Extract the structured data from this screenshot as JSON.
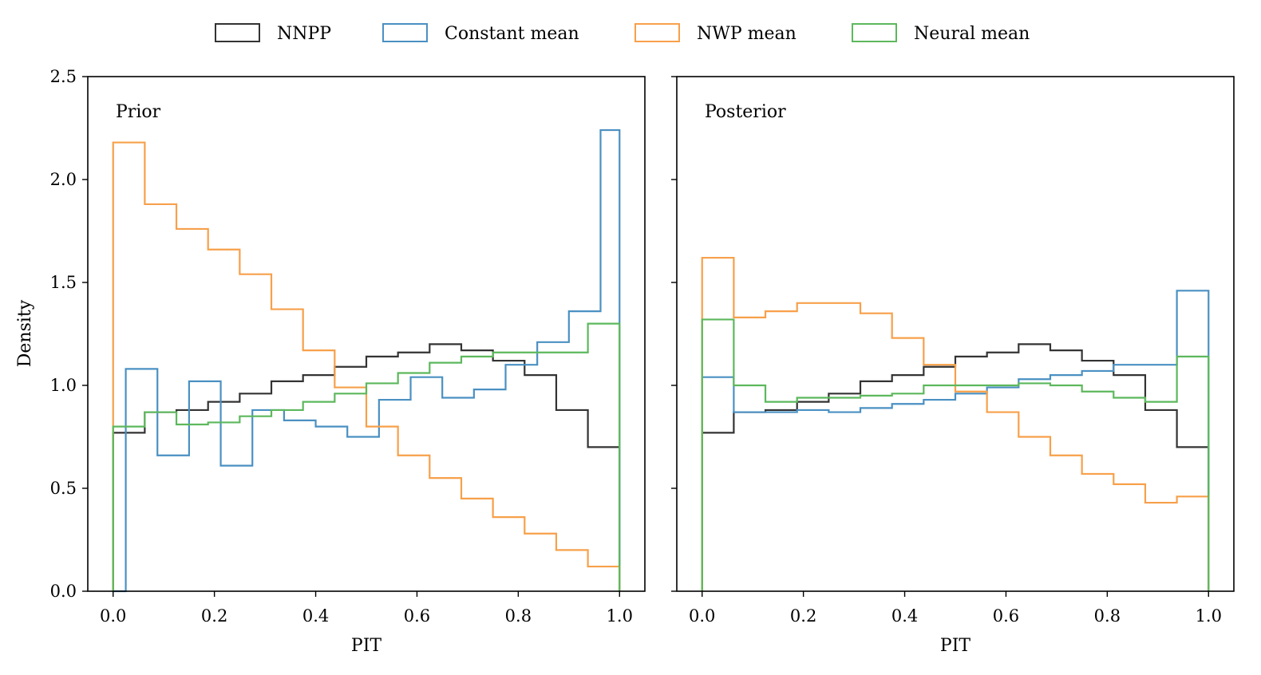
{
  "chart_data": [
    {
      "type": "histogram-step",
      "title": "Prior",
      "xlabel": "PIT",
      "ylabel": "Density",
      "xlim": [
        -0.05,
        1.05
      ],
      "ylim": [
        0,
        2.5
      ],
      "xticks": [
        "0.0",
        "0.2",
        "0.4",
        "0.6",
        "0.8",
        "1.0"
      ],
      "yticks": [
        "0.0",
        "0.5",
        "1.0",
        "1.5",
        "2.0",
        "2.5"
      ],
      "series": [
        {
          "name": "NNPP",
          "color": "#333333",
          "bin_edges": [
            0,
            0.0625,
            0.125,
            0.1875,
            0.25,
            0.3125,
            0.375,
            0.4375,
            0.5,
            0.5625,
            0.625,
            0.6875,
            0.75,
            0.8125,
            0.875,
            0.9375,
            1.0
          ],
          "values": [
            0.77,
            0.87,
            0.88,
            0.92,
            0.96,
            1.02,
            1.05,
            1.09,
            1.14,
            1.16,
            1.2,
            1.17,
            1.12,
            1.05,
            0.88,
            0.7
          ]
        },
        {
          "name": "Constant mean",
          "color": "#4a90c2",
          "bin_edges": [
            0,
            0.025,
            0.0875,
            0.15,
            0.2125,
            0.275,
            0.3375,
            0.4,
            0.4625,
            0.525,
            0.5875,
            0.65,
            0.7125,
            0.775,
            0.8375,
            0.9,
            0.9625,
            1.0
          ],
          "values": [
            0.0,
            1.08,
            0.66,
            1.02,
            0.61,
            0.88,
            0.83,
            0.8,
            0.75,
            0.93,
            1.04,
            0.94,
            0.98,
            1.1,
            1.21,
            1.36,
            2.24
          ]
        },
        {
          "name": "NWP mean",
          "color": "#f7a04a",
          "bin_edges": [
            0,
            0.0625,
            0.125,
            0.1875,
            0.25,
            0.3125,
            0.375,
            0.4375,
            0.5,
            0.5625,
            0.625,
            0.6875,
            0.75,
            0.8125,
            0.875,
            0.9375,
            1.0
          ],
          "values": [
            2.18,
            1.88,
            1.76,
            1.66,
            1.54,
            1.37,
            1.17,
            0.99,
            0.8,
            0.66,
            0.55,
            0.45,
            0.36,
            0.28,
            0.2,
            0.12
          ]
        },
        {
          "name": "Neural mean",
          "color": "#5cb85c",
          "bin_edges": [
            0,
            0.0625,
            0.125,
            0.1875,
            0.25,
            0.3125,
            0.375,
            0.4375,
            0.5,
            0.5625,
            0.625,
            0.6875,
            0.75,
            0.8125,
            0.875,
            0.9375,
            1.0
          ],
          "values": [
            0.8,
            0.87,
            0.81,
            0.82,
            0.85,
            0.88,
            0.92,
            0.96,
            1.01,
            1.06,
            1.11,
            1.14,
            1.16,
            1.16,
            1.16,
            1.3
          ]
        }
      ]
    },
    {
      "type": "histogram-step",
      "title": "Posterior",
      "xlabel": "PIT",
      "ylabel": "",
      "xlim": [
        -0.05,
        1.05
      ],
      "ylim": [
        0,
        2.5
      ],
      "xticks": [
        "0.0",
        "0.2",
        "0.4",
        "0.6",
        "0.8",
        "1.0"
      ],
      "yticks": [
        "",
        "",
        "",
        "",
        "",
        ""
      ],
      "series": [
        {
          "name": "NNPP",
          "color": "#333333",
          "bin_edges": [
            0,
            0.0625,
            0.125,
            0.1875,
            0.25,
            0.3125,
            0.375,
            0.4375,
            0.5,
            0.5625,
            0.625,
            0.6875,
            0.75,
            0.8125,
            0.875,
            0.9375,
            1.0
          ],
          "values": [
            0.77,
            0.87,
            0.88,
            0.92,
            0.96,
            1.02,
            1.05,
            1.09,
            1.14,
            1.16,
            1.2,
            1.17,
            1.12,
            1.05,
            0.88,
            0.7
          ]
        },
        {
          "name": "Constant mean",
          "color": "#4a90c2",
          "bin_edges": [
            0,
            0.0625,
            0.125,
            0.1875,
            0.25,
            0.3125,
            0.375,
            0.4375,
            0.5,
            0.5625,
            0.625,
            0.6875,
            0.75,
            0.8125,
            0.875,
            0.9375,
            1.0
          ],
          "values": [
            1.04,
            0.87,
            0.87,
            0.88,
            0.87,
            0.89,
            0.91,
            0.93,
            0.96,
            0.99,
            1.03,
            1.05,
            1.07,
            1.1,
            1.1,
            1.46
          ]
        },
        {
          "name": "NWP mean",
          "color": "#f7a04a",
          "bin_edges": [
            0,
            0.0625,
            0.125,
            0.1875,
            0.25,
            0.3125,
            0.375,
            0.4375,
            0.5,
            0.5625,
            0.625,
            0.6875,
            0.75,
            0.8125,
            0.875,
            0.9375,
            1.0
          ],
          "values": [
            1.62,
            1.33,
            1.36,
            1.4,
            1.4,
            1.35,
            1.23,
            1.1,
            0.97,
            0.87,
            0.75,
            0.66,
            0.57,
            0.52,
            0.43,
            0.46
          ]
        },
        {
          "name": "Neural mean",
          "color": "#5cb85c",
          "bin_edges": [
            0,
            0.0625,
            0.125,
            0.1875,
            0.25,
            0.3125,
            0.375,
            0.4375,
            0.5,
            0.5625,
            0.625,
            0.6875,
            0.75,
            0.8125,
            0.875,
            0.9375,
            1.0
          ],
          "values": [
            1.32,
            1.0,
            0.92,
            0.94,
            0.94,
            0.95,
            0.96,
            1.0,
            1.0,
            1.0,
            1.01,
            1.0,
            0.97,
            0.94,
            0.92,
            1.14
          ]
        }
      ]
    }
  ],
  "legend": {
    "placement": "top-center",
    "entries": [
      {
        "name": "NNPP",
        "color": "#333333"
      },
      {
        "name": "Constant mean",
        "color": "#4a90c2"
      },
      {
        "name": "NWP mean",
        "color": "#f7a04a"
      },
      {
        "name": "Neural mean",
        "color": "#5cb85c"
      }
    ]
  }
}
